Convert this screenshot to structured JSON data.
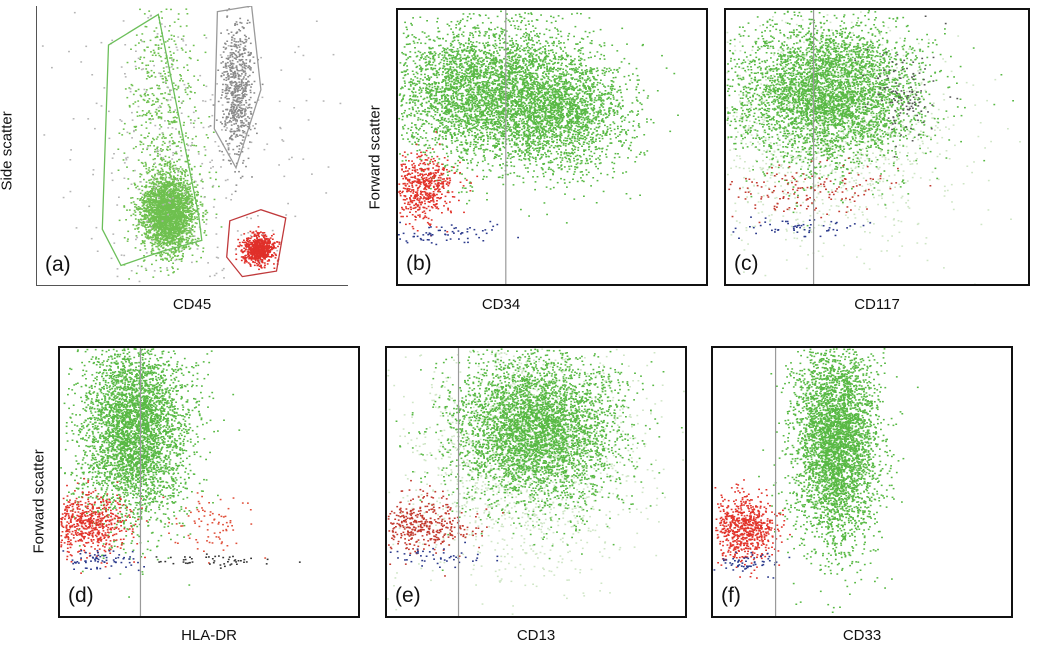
{
  "chart_data": [
    {
      "id": "a",
      "type": "scatter",
      "panel_label": "(a)",
      "xlabel": "CD45",
      "ylabel": "Side scatter",
      "x_marker": null,
      "grid": false,
      "gates": [
        {
          "color": "#6cbf5a",
          "points": [
            [
              0.23,
              0.14
            ],
            [
              0.39,
              0.03
            ],
            [
              0.52,
              0.75
            ],
            [
              0.53,
              0.84
            ],
            [
              0.4,
              0.88
            ],
            [
              0.27,
              0.93
            ],
            [
              0.21,
              0.8
            ]
          ]
        },
        {
          "color": "#9a9a9a",
          "points": [
            [
              0.58,
              0.02
            ],
            [
              0.69,
              0.0
            ],
            [
              0.72,
              0.3
            ],
            [
              0.64,
              0.58
            ],
            [
              0.57,
              0.44
            ]
          ]
        },
        {
          "color": "#c0393b",
          "points": [
            [
              0.62,
              0.77
            ],
            [
              0.72,
              0.73
            ],
            [
              0.8,
              0.76
            ],
            [
              0.77,
              0.95
            ],
            [
              0.66,
              0.97
            ],
            [
              0.61,
              0.9
            ]
          ]
        }
      ],
      "populations": [
        {
          "color": "#6ec04f",
          "n": 2600,
          "cx": 0.42,
          "cy": 0.74,
          "sx": 0.045,
          "sy": 0.07
        },
        {
          "color": "#6ec04f",
          "n": 600,
          "cx": 0.4,
          "cy": 0.4,
          "sx": 0.06,
          "sy": 0.22
        },
        {
          "color": "#8a8a8a",
          "n": 650,
          "cx": 0.64,
          "cy": 0.3,
          "sx": 0.025,
          "sy": 0.12
        },
        {
          "color": "#e0302a",
          "n": 700,
          "cx": 0.71,
          "cy": 0.87,
          "sx": 0.025,
          "sy": 0.025
        },
        {
          "color": "#b5b5b5",
          "n": 350,
          "cx": 0.45,
          "cy": 0.55,
          "sx": 0.25,
          "sy": 0.28
        }
      ]
    },
    {
      "id": "b",
      "type": "scatter",
      "panel_label": "(b)",
      "xlabel": "CD34",
      "ylabel": "Forward scatter",
      "x_marker": 0.35,
      "grid": false,
      "populations": [
        {
          "color": "#58b944",
          "n": 4200,
          "cx": 0.3,
          "cy": 0.3,
          "sx": 0.16,
          "sy": 0.13
        },
        {
          "color": "#58b944",
          "n": 1500,
          "cx": 0.55,
          "cy": 0.38,
          "sx": 0.1,
          "sy": 0.1
        },
        {
          "color": "#e2342b",
          "n": 550,
          "cx": 0.08,
          "cy": 0.64,
          "sx": 0.05,
          "sy": 0.06
        },
        {
          "color": "#2b3a8c",
          "n": 70,
          "cx": 0.14,
          "cy": 0.82,
          "sx": 0.1,
          "sy": 0.02
        }
      ]
    },
    {
      "id": "c",
      "type": "scatter",
      "panel_label": "(c)",
      "xlabel": "CD117",
      "ylabel": "",
      "x_marker": 0.29,
      "grid": false,
      "populations": [
        {
          "color": "#cfe6c6",
          "n": 1200,
          "cx": 0.33,
          "cy": 0.45,
          "sx": 0.22,
          "sy": 0.2
        },
        {
          "color": "#58b944",
          "n": 4200,
          "cx": 0.33,
          "cy": 0.3,
          "sx": 0.15,
          "sy": 0.13
        },
        {
          "color": "#555555",
          "n": 120,
          "cx": 0.58,
          "cy": 0.3,
          "sx": 0.06,
          "sy": 0.08
        },
        {
          "color": "#c23a2f",
          "n": 160,
          "cx": 0.25,
          "cy": 0.65,
          "sx": 0.14,
          "sy": 0.05
        },
        {
          "color": "#2b3a8c",
          "n": 60,
          "cx": 0.22,
          "cy": 0.79,
          "sx": 0.12,
          "sy": 0.02
        }
      ]
    },
    {
      "id": "d",
      "type": "scatter",
      "panel_label": "(d)",
      "xlabel": "HLA-DR",
      "ylabel": "Forward scatter",
      "x_marker": 0.27,
      "grid": false,
      "populations": [
        {
          "color": "#58b944",
          "n": 4000,
          "cx": 0.25,
          "cy": 0.3,
          "sx": 0.09,
          "sy": 0.17
        },
        {
          "color": "#e2342b",
          "n": 650,
          "cx": 0.09,
          "cy": 0.65,
          "sx": 0.07,
          "sy": 0.06
        },
        {
          "color": "#e0503a",
          "n": 80,
          "cx": 0.5,
          "cy": 0.66,
          "sx": 0.07,
          "sy": 0.05
        },
        {
          "color": "#2b3a8c",
          "n": 70,
          "cx": 0.12,
          "cy": 0.79,
          "sx": 0.07,
          "sy": 0.02
        },
        {
          "color": "#333333",
          "n": 50,
          "cx": 0.52,
          "cy": 0.79,
          "sx": 0.1,
          "sy": 0.015
        }
      ]
    },
    {
      "id": "e",
      "type": "scatter",
      "panel_label": "(e)",
      "xlabel": "CD13",
      "ylabel": "",
      "x_marker": 0.24,
      "grid": false,
      "populations": [
        {
          "color": "#cfe6c6",
          "n": 1400,
          "cx": 0.45,
          "cy": 0.42,
          "sx": 0.2,
          "sy": 0.22
        },
        {
          "color": "#58b944",
          "n": 4200,
          "cx": 0.5,
          "cy": 0.3,
          "sx": 0.14,
          "sy": 0.14
        },
        {
          "color": "#c23a2f",
          "n": 450,
          "cx": 0.1,
          "cy": 0.66,
          "sx": 0.09,
          "sy": 0.05
        },
        {
          "color": "#2b3a8c",
          "n": 50,
          "cx": 0.16,
          "cy": 0.78,
          "sx": 0.09,
          "sy": 0.02
        }
      ]
    },
    {
      "id": "f",
      "type": "scatter",
      "panel_label": "(f)",
      "xlabel": "CD33",
      "ylabel": "",
      "x_marker": 0.21,
      "grid": false,
      "populations": [
        {
          "color": "#58b944",
          "n": 4000,
          "cx": 0.41,
          "cy": 0.35,
          "sx": 0.07,
          "sy": 0.19
        },
        {
          "color": "#e2342b",
          "n": 700,
          "cx": 0.1,
          "cy": 0.67,
          "sx": 0.05,
          "sy": 0.06
        },
        {
          "color": "#2b3a8c",
          "n": 60,
          "cx": 0.11,
          "cy": 0.8,
          "sx": 0.05,
          "sy": 0.02
        }
      ]
    }
  ]
}
